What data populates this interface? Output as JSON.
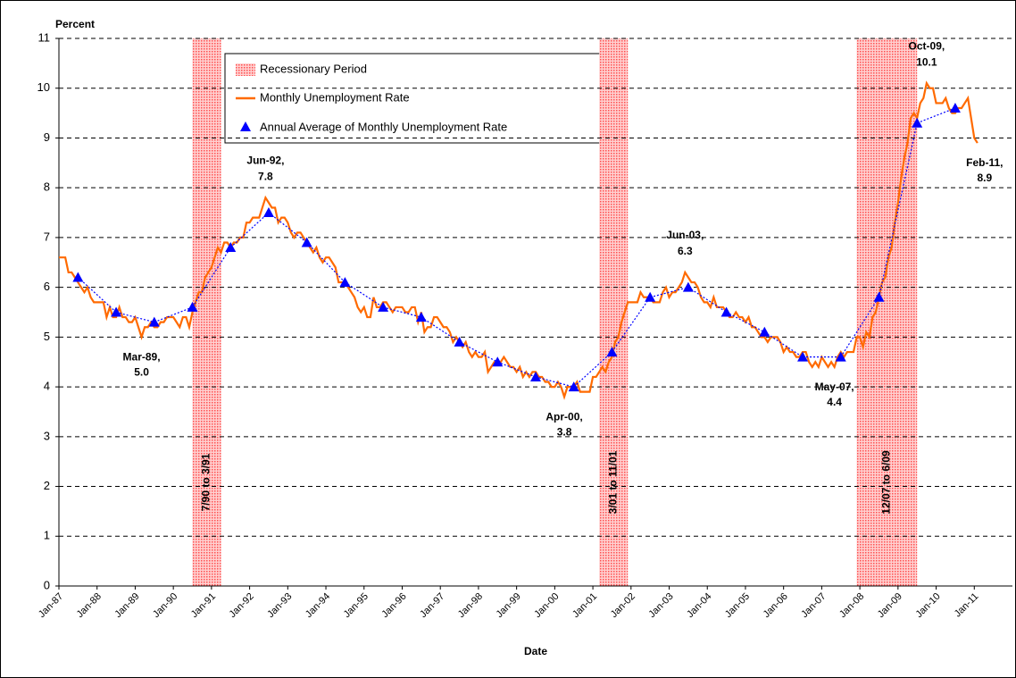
{
  "chart_data": {
    "type": "line",
    "y_axis_label": "Percent",
    "x_axis_label": "Date",
    "ylim": [
      0,
      11
    ],
    "yticks": [
      0,
      1,
      2,
      3,
      4,
      5,
      6,
      7,
      8,
      9,
      10,
      11
    ],
    "grid": true,
    "legend_position": "top-left",
    "categories": [
      "Jan-87",
      null,
      null,
      null,
      null,
      null,
      null,
      null,
      null,
      null,
      null,
      null,
      "Jan-88",
      null,
      null,
      null,
      null,
      null,
      null,
      null,
      null,
      null,
      null,
      null,
      "Jan-89",
      null,
      null,
      null,
      null,
      null,
      null,
      null,
      null,
      null,
      null,
      null,
      "Jan-90",
      null,
      null,
      null,
      null,
      null,
      null,
      null,
      null,
      null,
      null,
      null,
      "Jan-91",
      null,
      null,
      null,
      null,
      null,
      null,
      null,
      null,
      null,
      null,
      null,
      "Jan-92",
      null,
      null,
      null,
      null,
      null,
      null,
      null,
      null,
      null,
      null,
      null,
      "Jan-93",
      null,
      null,
      null,
      null,
      null,
      null,
      null,
      null,
      null,
      null,
      null,
      "Jan-94",
      null,
      null,
      null,
      null,
      null,
      null,
      null,
      null,
      null,
      null,
      null,
      "Jan-95",
      null,
      null,
      null,
      null,
      null,
      null,
      null,
      null,
      null,
      null,
      null,
      "Jan-96",
      null,
      null,
      null,
      null,
      null,
      null,
      null,
      null,
      null,
      null,
      null,
      "Jan-97",
      null,
      null,
      null,
      null,
      null,
      null,
      null,
      null,
      null,
      null,
      null,
      "Jan-98",
      null,
      null,
      null,
      null,
      null,
      null,
      null,
      null,
      null,
      null,
      null,
      "Jan-99",
      null,
      null,
      null,
      null,
      null,
      null,
      null,
      null,
      null,
      null,
      null,
      "Jan-00",
      null,
      null,
      null,
      null,
      null,
      null,
      null,
      null,
      null,
      null,
      null,
      "Jan-01",
      null,
      null,
      null,
      null,
      null,
      null,
      null,
      null,
      null,
      null,
      null,
      "Jan-02",
      null,
      null,
      null,
      null,
      null,
      null,
      null,
      null,
      null,
      null,
      null,
      "Jan-03",
      null,
      null,
      null,
      null,
      null,
      null,
      null,
      null,
      null,
      null,
      null,
      "Jan-04",
      null,
      null,
      null,
      null,
      null,
      null,
      null,
      null,
      null,
      null,
      null,
      "Jan-05",
      null,
      null,
      null,
      null,
      null,
      null,
      null,
      null,
      null,
      null,
      null,
      "Jan-06",
      null,
      null,
      null,
      null,
      null,
      null,
      null,
      null,
      null,
      null,
      null,
      "Jan-07",
      null,
      null,
      null,
      null,
      null,
      null,
      null,
      null,
      null,
      null,
      null,
      "Jan-08",
      null,
      null,
      null,
      null,
      null,
      null,
      null,
      null,
      null,
      null,
      null,
      "Jan-09",
      null,
      null,
      null,
      null,
      null,
      null,
      null,
      null,
      null,
      null,
      null,
      "Jan-10",
      null,
      null,
      null,
      null,
      null,
      null,
      null,
      null,
      null,
      null,
      null,
      "Jan-11",
      null
    ],
    "recession_name": "Recessionary Period",
    "recession_color": "#ff5050",
    "recessions": [
      "7/90 to 3/91",
      "3/01 to 11/01",
      "12/07 to 6/09"
    ],
    "series": [
      {
        "name": "Monthly Unemployment Rate",
        "color": "#ff6a00",
        "values": [
          6.6,
          6.6,
          6.6,
          6.3,
          6.3,
          6.2,
          6.1,
          6.0,
          5.9,
          6.0,
          5.8,
          5.7,
          5.7,
          5.7,
          5.7,
          5.4,
          5.6,
          5.4,
          5.4,
          5.6,
          5.4,
          5.4,
          5.3,
          5.3,
          5.4,
          5.2,
          5.0,
          5.2,
          5.2,
          5.3,
          5.2,
          5.2,
          5.3,
          5.3,
          5.4,
          5.4,
          5.4,
          5.3,
          5.2,
          5.4,
          5.4,
          5.2,
          5.5,
          5.7,
          5.9,
          5.9,
          6.2,
          6.3,
          6.4,
          6.6,
          6.8,
          6.7,
          6.9,
          6.9,
          6.8,
          6.9,
          6.9,
          7.0,
          7.0,
          7.3,
          7.3,
          7.4,
          7.4,
          7.4,
          7.6,
          7.8,
          7.7,
          7.6,
          7.6,
          7.3,
          7.4,
          7.4,
          7.3,
          7.1,
          7.0,
          7.1,
          7.1,
          7.0,
          6.9,
          6.8,
          6.7,
          6.8,
          6.6,
          6.5,
          6.6,
          6.6,
          6.5,
          6.4,
          6.1,
          6.1,
          6.1,
          6.0,
          5.9,
          5.8,
          5.6,
          5.5,
          5.6,
          5.4,
          5.4,
          5.8,
          5.6,
          5.6,
          5.7,
          5.7,
          5.6,
          5.5,
          5.6,
          5.6,
          5.6,
          5.5,
          5.5,
          5.6,
          5.6,
          5.3,
          5.5,
          5.1,
          5.2,
          5.2,
          5.4,
          5.4,
          5.3,
          5.2,
          5.2,
          5.1,
          4.9,
          5.0,
          4.9,
          4.8,
          4.9,
          4.7,
          4.6,
          4.7,
          4.6,
          4.6,
          4.7,
          4.3,
          4.4,
          4.5,
          4.5,
          4.5,
          4.6,
          4.5,
          4.4,
          4.4,
          4.3,
          4.4,
          4.2,
          4.3,
          4.2,
          4.3,
          4.3,
          4.2,
          4.2,
          4.1,
          4.1,
          4.0,
          4.0,
          4.1,
          4.0,
          3.8,
          4.0,
          4.0,
          4.0,
          4.1,
          3.9,
          3.9,
          3.9,
          3.9,
          4.2,
          4.2,
          4.3,
          4.4,
          4.3,
          4.5,
          4.6,
          4.9,
          5.0,
          5.3,
          5.5,
          5.7,
          5.7,
          5.7,
          5.7,
          5.9,
          5.8,
          5.8,
          5.8,
          5.7,
          5.7,
          5.7,
          5.9,
          6.0,
          5.8,
          5.9,
          5.9,
          6.0,
          6.1,
          6.3,
          6.2,
          6.1,
          6.1,
          6.0,
          5.8,
          5.7,
          5.7,
          5.6,
          5.8,
          5.6,
          5.6,
          5.6,
          5.5,
          5.4,
          5.4,
          5.5,
          5.4,
          5.4,
          5.3,
          5.4,
          5.2,
          5.2,
          5.1,
          5.0,
          5.0,
          4.9,
          5.0,
          5.0,
          5.0,
          4.9,
          4.7,
          4.8,
          4.7,
          4.7,
          4.6,
          4.6,
          4.7,
          4.7,
          4.5,
          4.4,
          4.5,
          4.4,
          4.6,
          4.5,
          4.4,
          4.5,
          4.4,
          4.6,
          4.7,
          4.6,
          4.7,
          4.7,
          4.7,
          5.0,
          5.0,
          4.8,
          5.1,
          5.0,
          5.4,
          5.5,
          5.8,
          6.1,
          6.2,
          6.6,
          6.8,
          7.3,
          7.7,
          8.2,
          8.6,
          8.9,
          9.4,
          9.5,
          9.4,
          9.7,
          9.8,
          10.1,
          10.0,
          10.0,
          9.7,
          9.7,
          9.7,
          9.8,
          9.6,
          9.5,
          9.5,
          9.6,
          9.6,
          9.7,
          9.8,
          9.4,
          9.0,
          8.9
        ]
      },
      {
        "name": "Annual Average of Monthly Unemployment Rate",
        "color": "#0000ff",
        "values": [
          null,
          null,
          null,
          null,
          null,
          null,
          6.2,
          null,
          null,
          null,
          null,
          null,
          null,
          null,
          null,
          null,
          null,
          null,
          5.5,
          null,
          null,
          null,
          null,
          null,
          null,
          null,
          null,
          null,
          null,
          null,
          5.3,
          null,
          null,
          null,
          null,
          null,
          null,
          null,
          null,
          null,
          null,
          null,
          5.6,
          null,
          null,
          null,
          null,
          null,
          null,
          null,
          null,
          null,
          null,
          null,
          6.8,
          null,
          null,
          null,
          null,
          null,
          null,
          null,
          null,
          null,
          null,
          null,
          7.5,
          null,
          null,
          null,
          null,
          null,
          null,
          null,
          null,
          null,
          null,
          null,
          6.9,
          null,
          null,
          null,
          null,
          null,
          null,
          null,
          null,
          null,
          null,
          null,
          6.1,
          null,
          null,
          null,
          null,
          null,
          null,
          null,
          null,
          null,
          null,
          null,
          5.6,
          null,
          null,
          null,
          null,
          null,
          null,
          null,
          null,
          null,
          null,
          null,
          5.4,
          null,
          null,
          null,
          null,
          null,
          null,
          null,
          null,
          null,
          null,
          null,
          4.9,
          null,
          null,
          null,
          null,
          null,
          null,
          null,
          null,
          null,
          null,
          null,
          4.5,
          null,
          null,
          null,
          null,
          null,
          null,
          null,
          null,
          null,
          null,
          null,
          4.2,
          null,
          null,
          null,
          null,
          null,
          null,
          null,
          null,
          null,
          null,
          null,
          4.0,
          null,
          null,
          null,
          null,
          null,
          null,
          null,
          null,
          null,
          null,
          null,
          4.7,
          null,
          null,
          null,
          null,
          null,
          null,
          null,
          null,
          null,
          null,
          null,
          5.8,
          null,
          null,
          null,
          null,
          null,
          null,
          null,
          null,
          null,
          null,
          null,
          6.0,
          null,
          null,
          null,
          null,
          null,
          null,
          null,
          null,
          null,
          null,
          null,
          5.5,
          null,
          null,
          null,
          null,
          null,
          null,
          null,
          null,
          null,
          null,
          null,
          5.1,
          null,
          null,
          null,
          null,
          null,
          null,
          null,
          null,
          null,
          null,
          null,
          4.6,
          null,
          null,
          null,
          null,
          null,
          null,
          null,
          null,
          null,
          null,
          null,
          4.6,
          null,
          null,
          null,
          null,
          null,
          null,
          null,
          null,
          null,
          null,
          null,
          5.8,
          null,
          null,
          null,
          null,
          null,
          null,
          null,
          null,
          null,
          null,
          null,
          9.3,
          null,
          null,
          null,
          null,
          null,
          null,
          null,
          null,
          null,
          null,
          null,
          9.6,
          null,
          null,
          null,
          null,
          null,
          null,
          null
        ]
      }
    ],
    "annotations": [
      {
        "text": "Mar-89,",
        "value": 5,
        "label": "5.0",
        "position": "below"
      },
      {
        "text": "Jun-92,",
        "value": 7.8,
        "label": "7.8",
        "position": "above"
      },
      {
        "text": "Apr-00,",
        "value": 3.8,
        "label": "3.8",
        "position": "below"
      },
      {
        "text": "Jun-03,",
        "value": 6.3,
        "label": "6.3",
        "position": "above"
      },
      {
        "text": "May-07,",
        "value": 4.4,
        "label": "4.4",
        "position": "below"
      },
      {
        "text": "Oct-09,",
        "value": 10.1,
        "label": "10.1",
        "position": "above"
      },
      {
        "text": "Feb-11,",
        "value": 8.9,
        "label": "8.9",
        "position": "below-right"
      }
    ]
  }
}
